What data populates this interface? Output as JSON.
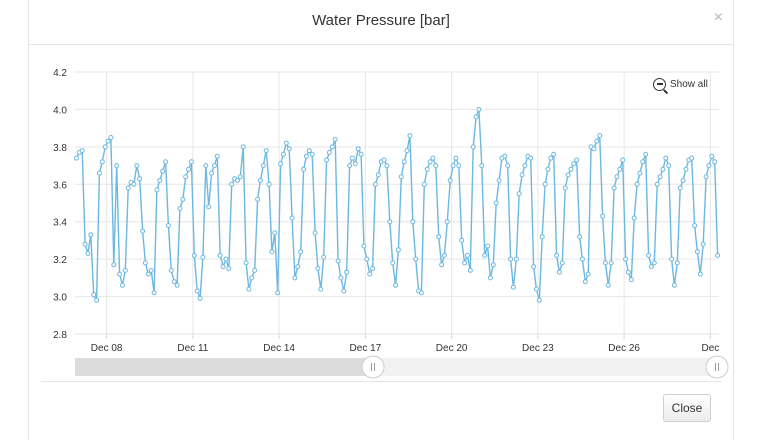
{
  "dialog": {
    "title": "Water Pressure [bar]",
    "close_x": "×",
    "close_button": "Close"
  },
  "chart_controls": {
    "show_all": "Show all",
    "show_all_icon": "zoom-out-icon"
  },
  "colors": {
    "series": "#6cb8e0",
    "grid": "#e6e6e6",
    "navigator_fill": "#dcdcdc",
    "navigator_bg": "#f2f2f2"
  },
  "chart_data": {
    "type": "line",
    "title": "Water Pressure [bar]",
    "xlabel": "",
    "ylabel": "",
    "ylim": [
      2.8,
      4.2
    ],
    "yticks": [
      "2.8",
      "3.0",
      "3.2",
      "3.4",
      "3.6",
      "3.8",
      "4.0",
      "4.2"
    ],
    "xticks": [
      "Dec 08",
      "Dec 11",
      "Dec 14",
      "Dec 17",
      "Dec 20",
      "Dec 23",
      "Dec 26",
      "Dec"
    ],
    "xlim_days": [
      6.9,
      29.3
    ],
    "grid": true,
    "legend": "none",
    "series": [
      {
        "values": [
          [
            6.95,
            3.74
          ],
          [
            7.05,
            3.77
          ],
          [
            7.15,
            3.78
          ],
          [
            7.25,
            3.28
          ],
          [
            7.35,
            3.23
          ],
          [
            7.45,
            3.33
          ],
          [
            7.55,
            3.01
          ],
          [
            7.65,
            2.98
          ],
          [
            7.75,
            3.66
          ],
          [
            7.85,
            3.72
          ],
          [
            7.95,
            3.8
          ],
          [
            8.05,
            3.83
          ],
          [
            8.15,
            3.85
          ],
          [
            8.25,
            3.17
          ],
          [
            8.35,
            3.7
          ],
          [
            8.45,
            3.12
          ],
          [
            8.55,
            3.06
          ],
          [
            8.65,
            3.14
          ],
          [
            8.75,
            3.58
          ],
          [
            8.85,
            3.61
          ],
          [
            8.95,
            3.6
          ],
          [
            9.05,
            3.7
          ],
          [
            9.15,
            3.63
          ],
          [
            9.25,
            3.35
          ],
          [
            9.35,
            3.18
          ],
          [
            9.45,
            3.12
          ],
          [
            9.55,
            3.14
          ],
          [
            9.65,
            3.02
          ],
          [
            9.75,
            3.57
          ],
          [
            9.85,
            3.62
          ],
          [
            9.95,
            3.67
          ],
          [
            10.05,
            3.72
          ],
          [
            10.15,
            3.38
          ],
          [
            10.25,
            3.14
          ],
          [
            10.35,
            3.08
          ],
          [
            10.45,
            3.06
          ],
          [
            10.55,
            3.47
          ],
          [
            10.65,
            3.52
          ],
          [
            10.75,
            3.64
          ],
          [
            10.85,
            3.68
          ],
          [
            10.95,
            3.72
          ],
          [
            11.05,
            3.22
          ],
          [
            11.15,
            3.03
          ],
          [
            11.25,
            2.99
          ],
          [
            11.35,
            3.21
          ],
          [
            11.45,
            3.7
          ],
          [
            11.55,
            3.48
          ],
          [
            11.65,
            3.66
          ],
          [
            11.75,
            3.7
          ],
          [
            11.85,
            3.75
          ],
          [
            11.95,
            3.22
          ],
          [
            12.05,
            3.16
          ],
          [
            12.15,
            3.2
          ],
          [
            12.25,
            3.15
          ],
          [
            12.35,
            3.6
          ],
          [
            12.45,
            3.63
          ],
          [
            12.55,
            3.62
          ],
          [
            12.65,
            3.64
          ],
          [
            12.75,
            3.8
          ],
          [
            12.85,
            3.18
          ],
          [
            12.95,
            3.04
          ],
          [
            13.05,
            3.1
          ],
          [
            13.15,
            3.14
          ],
          [
            13.25,
            3.52
          ],
          [
            13.35,
            3.62
          ],
          [
            13.45,
            3.7
          ],
          [
            13.55,
            3.78
          ],
          [
            13.65,
            3.6
          ],
          [
            13.75,
            3.24
          ],
          [
            13.85,
            3.34
          ],
          [
            13.95,
            3.02
          ],
          [
            14.05,
            3.71
          ],
          [
            14.15,
            3.76
          ],
          [
            14.25,
            3.82
          ],
          [
            14.35,
            3.79
          ],
          [
            14.45,
            3.42
          ],
          [
            14.55,
            3.1
          ],
          [
            14.65,
            3.16
          ],
          [
            14.75,
            3.24
          ],
          [
            14.85,
            3.68
          ],
          [
            14.95,
            3.75
          ],
          [
            15.05,
            3.78
          ],
          [
            15.15,
            3.76
          ],
          [
            15.25,
            3.34
          ],
          [
            15.35,
            3.15
          ],
          [
            15.45,
            3.04
          ],
          [
            15.55,
            3.21
          ],
          [
            15.65,
            3.73
          ],
          [
            15.75,
            3.77
          ],
          [
            15.85,
            3.8
          ],
          [
            15.95,
            3.84
          ],
          [
            16.05,
            3.19
          ],
          [
            16.15,
            3.1
          ],
          [
            16.25,
            3.03
          ],
          [
            16.35,
            3.13
          ],
          [
            16.45,
            3.7
          ],
          [
            16.55,
            3.74
          ],
          [
            16.65,
            3.71
          ],
          [
            16.75,
            3.79
          ],
          [
            16.85,
            3.76
          ],
          [
            16.95,
            3.27
          ],
          [
            17.05,
            3.2
          ],
          [
            17.15,
            3.12
          ],
          [
            17.25,
            3.15
          ],
          [
            17.35,
            3.6
          ],
          [
            17.45,
            3.65
          ],
          [
            17.55,
            3.72
          ],
          [
            17.65,
            3.73
          ],
          [
            17.75,
            3.7
          ],
          [
            17.85,
            3.4
          ],
          [
            17.95,
            3.18
          ],
          [
            18.05,
            3.06
          ],
          [
            18.15,
            3.25
          ],
          [
            18.25,
            3.64
          ],
          [
            18.35,
            3.72
          ],
          [
            18.45,
            3.78
          ],
          [
            18.55,
            3.86
          ],
          [
            18.65,
            3.4
          ],
          [
            18.75,
            3.2
          ],
          [
            18.85,
            3.03
          ],
          [
            18.95,
            3.02
          ],
          [
            19.05,
            3.6
          ],
          [
            19.15,
            3.68
          ],
          [
            19.25,
            3.72
          ],
          [
            19.35,
            3.74
          ],
          [
            19.45,
            3.7
          ],
          [
            19.55,
            3.32
          ],
          [
            19.65,
            3.17
          ],
          [
            19.75,
            3.22
          ],
          [
            19.85,
            3.4
          ],
          [
            19.95,
            3.62
          ],
          [
            20.05,
            3.7
          ],
          [
            20.15,
            3.74
          ],
          [
            20.25,
            3.7
          ],
          [
            20.35,
            3.3
          ],
          [
            20.45,
            3.18
          ],
          [
            20.55,
            3.22
          ],
          [
            20.65,
            3.14
          ],
          [
            20.75,
            3.8
          ],
          [
            20.85,
            3.96
          ],
          [
            20.95,
            4.0
          ],
          [
            21.05,
            3.7
          ],
          [
            21.15,
            3.22
          ],
          [
            21.25,
            3.27
          ],
          [
            21.35,
            3.1
          ],
          [
            21.45,
            3.17
          ],
          [
            21.55,
            3.5
          ],
          [
            21.65,
            3.62
          ],
          [
            21.75,
            3.74
          ],
          [
            21.85,
            3.75
          ],
          [
            21.95,
            3.7
          ],
          [
            22.05,
            3.2
          ],
          [
            22.15,
            3.05
          ],
          [
            22.25,
            3.2
          ],
          [
            22.35,
            3.55
          ],
          [
            22.45,
            3.65
          ],
          [
            22.55,
            3.7
          ],
          [
            22.65,
            3.75
          ],
          [
            22.75,
            3.74
          ],
          [
            22.85,
            3.16
          ],
          [
            22.95,
            3.04
          ],
          [
            23.05,
            2.98
          ],
          [
            23.15,
            3.32
          ],
          [
            23.25,
            3.6
          ],
          [
            23.35,
            3.68
          ],
          [
            23.45,
            3.74
          ],
          [
            23.55,
            3.76
          ],
          [
            23.65,
            3.22
          ],
          [
            23.75,
            3.13
          ],
          [
            23.85,
            3.18
          ],
          [
            23.95,
            3.58
          ],
          [
            24.05,
            3.65
          ],
          [
            24.15,
            3.68
          ],
          [
            24.25,
            3.71
          ],
          [
            24.35,
            3.73
          ],
          [
            24.45,
            3.32
          ],
          [
            24.55,
            3.2
          ],
          [
            24.65,
            3.08
          ],
          [
            24.75,
            3.12
          ],
          [
            24.85,
            3.8
          ],
          [
            24.95,
            3.79
          ],
          [
            25.05,
            3.83
          ],
          [
            25.15,
            3.86
          ],
          [
            25.25,
            3.43
          ],
          [
            25.35,
            3.18
          ],
          [
            25.45,
            3.06
          ],
          [
            25.55,
            3.18
          ],
          [
            25.65,
            3.58
          ],
          [
            25.75,
            3.64
          ],
          [
            25.85,
            3.68
          ],
          [
            25.95,
            3.73
          ],
          [
            26.05,
            3.2
          ],
          [
            26.15,
            3.13
          ],
          [
            26.25,
            3.09
          ],
          [
            26.35,
            3.42
          ],
          [
            26.45,
            3.6
          ],
          [
            26.55,
            3.66
          ],
          [
            26.65,
            3.72
          ],
          [
            26.75,
            3.76
          ],
          [
            26.85,
            3.22
          ],
          [
            26.95,
            3.16
          ],
          [
            27.05,
            3.18
          ],
          [
            27.15,
            3.6
          ],
          [
            27.25,
            3.64
          ],
          [
            27.35,
            3.68
          ],
          [
            27.45,
            3.74
          ],
          [
            27.55,
            3.7
          ],
          [
            27.65,
            3.2
          ],
          [
            27.75,
            3.06
          ],
          [
            27.85,
            3.18
          ],
          [
            27.95,
            3.58
          ],
          [
            28.05,
            3.62
          ],
          [
            28.15,
            3.68
          ],
          [
            28.25,
            3.73
          ],
          [
            28.35,
            3.74
          ],
          [
            28.45,
            3.38
          ],
          [
            28.55,
            3.24
          ],
          [
            28.65,
            3.12
          ],
          [
            28.75,
            3.28
          ],
          [
            28.85,
            3.64
          ],
          [
            28.95,
            3.7
          ],
          [
            29.05,
            3.75
          ],
          [
            29.15,
            3.72
          ],
          [
            29.25,
            3.22
          ]
        ]
      }
    ]
  }
}
